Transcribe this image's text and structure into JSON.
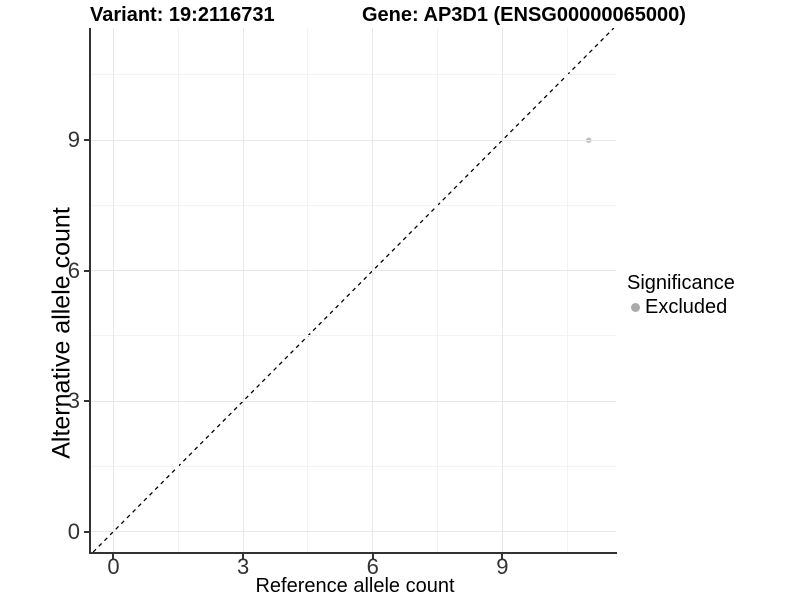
{
  "titles": {
    "variant": "Variant: 19:2116731",
    "gene": "Gene: AP3D1 (ENSG00000065000)"
  },
  "axes": {
    "x_label": "Reference allele count",
    "y_label": "Alternative allele count"
  },
  "legend": {
    "title": "Significance",
    "items": [
      {
        "label": "Excluded",
        "color": "#b5b5b5"
      }
    ]
  },
  "colors": {
    "background": "#ffffff",
    "axis_line": "#333333",
    "tick_text": "#333333",
    "grid_major": "#e8e8e8",
    "grid_minor": "#f3f3f3",
    "identity_line": "#000000",
    "point_excluded": "#bfbfbf"
  },
  "chart_data": {
    "type": "scatter",
    "title": "Variant: 19:2116731    Gene: AP3D1 (ENSG00000065000)",
    "xlabel": "Reference allele count",
    "ylabel": "Alternative allele count",
    "xlim": [
      -0.52,
      11.63
    ],
    "ylim": [
      -0.47,
      11.58
    ],
    "x_ticks": [
      0,
      3,
      6,
      9
    ],
    "y_ticks": [
      0,
      3,
      6,
      9
    ],
    "x_minor_ticks": [
      1.5,
      4.5,
      7.5,
      10.5
    ],
    "y_minor_ticks": [
      1.5,
      4.5,
      7.5,
      10.5
    ],
    "grid": true,
    "legend_position": "right",
    "series": [
      {
        "name": "Excluded",
        "color": "#bfbfbf",
        "points": [
          {
            "x": 11,
            "y": 9
          }
        ]
      }
    ],
    "reference_line": {
      "kind": "identity",
      "equation": "y = x",
      "style": "dashed",
      "color": "#000000"
    }
  }
}
